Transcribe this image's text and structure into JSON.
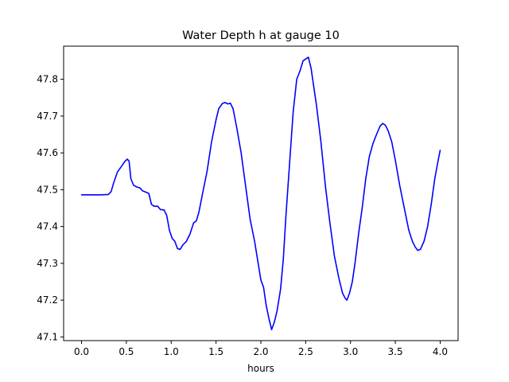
{
  "chart_data": {
    "type": "line",
    "title": "Water Depth h at gauge 10",
    "xlabel": "hours",
    "ylabel": "",
    "xlim": [
      -0.2,
      4.2
    ],
    "ylim": [
      47.09,
      47.89
    ],
    "xticks": [
      0.0,
      0.5,
      1.0,
      1.5,
      2.0,
      2.5,
      3.0,
      3.5,
      4.0
    ],
    "xtick_labels": [
      "0.0",
      "0.5",
      "1.0",
      "1.5",
      "2.0",
      "2.5",
      "3.0",
      "3.5",
      "4.0"
    ],
    "yticks": [
      47.1,
      47.2,
      47.3,
      47.4,
      47.5,
      47.6,
      47.7,
      47.8
    ],
    "ytick_labels": [
      "47.1",
      "47.2",
      "47.3",
      "47.4",
      "47.5",
      "47.6",
      "47.7",
      "47.8"
    ],
    "grid": false,
    "legend": false,
    "series": [
      {
        "color": "#0000ff",
        "x": [
          0.0,
          0.1,
          0.2,
          0.3,
          0.33,
          0.36,
          0.4,
          0.45,
          0.48,
          0.51,
          0.53,
          0.55,
          0.58,
          0.62,
          0.65,
          0.68,
          0.71,
          0.75,
          0.78,
          0.81,
          0.85,
          0.88,
          0.92,
          0.95,
          0.98,
          1.01,
          1.04,
          1.07,
          1.1,
          1.13,
          1.17,
          1.21,
          1.25,
          1.28,
          1.31,
          1.35,
          1.4,
          1.45,
          1.5,
          1.53,
          1.57,
          1.6,
          1.63,
          1.66,
          1.69,
          1.73,
          1.78,
          1.83,
          1.88,
          1.93,
          1.97,
          2.0,
          2.03,
          2.06,
          2.09,
          2.12,
          2.15,
          2.18,
          2.22,
          2.25,
          2.28,
          2.32,
          2.36,
          2.4,
          2.44,
          2.47,
          2.5,
          2.53,
          2.56,
          2.59,
          2.62,
          2.67,
          2.72,
          2.77,
          2.82,
          2.87,
          2.91,
          2.94,
          2.96,
          2.99,
          3.02,
          3.05,
          3.09,
          3.13,
          3.17,
          3.21,
          3.25,
          3.29,
          3.33,
          3.36,
          3.39,
          3.42,
          3.46,
          3.5,
          3.55,
          3.6,
          3.65,
          3.69,
          3.72,
          3.75,
          3.78,
          3.82,
          3.86,
          3.9,
          3.94,
          3.97,
          4.0
        ],
        "y": [
          47.486,
          47.486,
          47.486,
          47.487,
          47.495,
          47.52,
          47.548,
          47.565,
          47.576,
          47.583,
          47.578,
          47.53,
          47.512,
          47.507,
          47.505,
          47.497,
          47.494,
          47.49,
          47.46,
          47.455,
          47.455,
          47.446,
          47.445,
          47.43,
          47.39,
          47.368,
          47.36,
          47.34,
          47.338,
          47.35,
          47.36,
          47.38,
          47.41,
          47.415,
          47.44,
          47.49,
          47.55,
          47.63,
          47.69,
          47.72,
          47.734,
          47.737,
          47.733,
          47.735,
          47.72,
          47.67,
          47.6,
          47.51,
          47.42,
          47.36,
          47.3,
          47.255,
          47.235,
          47.185,
          47.15,
          47.12,
          47.14,
          47.17,
          47.23,
          47.31,
          47.43,
          47.57,
          47.71,
          47.8,
          47.825,
          47.85,
          47.855,
          47.86,
          47.83,
          47.78,
          47.73,
          47.63,
          47.51,
          47.41,
          47.32,
          47.26,
          47.22,
          47.205,
          47.2,
          47.22,
          47.25,
          47.3,
          47.38,
          47.45,
          47.53,
          47.59,
          47.625,
          47.65,
          47.673,
          47.68,
          47.675,
          47.66,
          47.63,
          47.58,
          47.51,
          47.45,
          47.39,
          47.36,
          47.345,
          47.335,
          47.338,
          47.36,
          47.4,
          47.46,
          47.53,
          47.57,
          47.607
        ]
      }
    ]
  }
}
